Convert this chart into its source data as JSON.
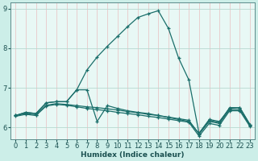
{
  "xlabel": "Humidex (Indice chaleur)",
  "xlim": [
    -0.5,
    23.5
  ],
  "ylim": [
    5.7,
    9.15
  ],
  "yticks": [
    6,
    7,
    8,
    9
  ],
  "xticks": [
    0,
    1,
    2,
    3,
    4,
    5,
    6,
    7,
    8,
    9,
    10,
    11,
    12,
    13,
    14,
    15,
    16,
    17,
    18,
    19,
    20,
    21,
    22,
    23
  ],
  "bg_color": "#cceee8",
  "plot_bg": "#e8f8f5",
  "line_color": "#1a6e6a",
  "vgrid_color": "#e8c8c8",
  "hgrid_color": "#b8d8d0",
  "lines": [
    {
      "x": [
        0,
        1,
        2,
        3,
        4,
        5,
        6,
        7,
        8,
        9,
        10,
        11,
        12,
        13,
        14,
        15,
        16,
        17,
        18,
        19,
        20,
        21,
        22,
        23
      ],
      "y": [
        6.3,
        6.38,
        6.35,
        6.62,
        6.65,
        6.65,
        6.95,
        7.45,
        7.78,
        8.05,
        8.3,
        8.55,
        8.78,
        8.87,
        8.95,
        8.5,
        7.75,
        7.2,
        5.85,
        6.2,
        6.15,
        6.48,
        6.5,
        6.07
      ]
    },
    {
      "x": [
        0,
        1,
        2,
        3,
        4,
        5,
        6,
        7,
        8,
        9,
        10,
        11,
        12,
        13,
        14,
        15,
        16,
        17,
        18,
        19,
        20,
        21,
        22,
        23
      ],
      "y": [
        6.3,
        6.38,
        6.35,
        6.62,
        6.65,
        6.65,
        6.95,
        6.95,
        6.15,
        6.55,
        6.48,
        6.42,
        6.38,
        6.35,
        6.3,
        6.25,
        6.2,
        6.15,
        5.85,
        6.18,
        6.12,
        6.5,
        6.5,
        6.07
      ]
    },
    {
      "x": [
        0,
        1,
        2,
        3,
        4,
        5,
        6,
        7,
        8,
        9,
        10,
        11,
        12,
        13,
        14,
        15,
        16,
        17,
        18,
        19,
        20,
        21,
        22,
        23
      ],
      "y": [
        6.3,
        6.35,
        6.32,
        6.56,
        6.6,
        6.58,
        6.55,
        6.52,
        6.5,
        6.47,
        6.44,
        6.4,
        6.37,
        6.33,
        6.3,
        6.26,
        6.22,
        6.18,
        5.83,
        6.15,
        6.1,
        6.45,
        6.45,
        6.05
      ]
    },
    {
      "x": [
        0,
        1,
        2,
        3,
        4,
        5,
        6,
        7,
        8,
        9,
        10,
        11,
        12,
        13,
        14,
        15,
        16,
        17,
        18,
        19,
        20,
        21,
        22,
        23
      ],
      "y": [
        6.28,
        6.33,
        6.3,
        6.54,
        6.58,
        6.56,
        6.52,
        6.48,
        6.45,
        6.42,
        6.38,
        6.35,
        6.32,
        6.28,
        6.25,
        6.21,
        6.17,
        6.13,
        5.78,
        6.1,
        6.05,
        6.42,
        6.42,
        6.02
      ]
    }
  ]
}
